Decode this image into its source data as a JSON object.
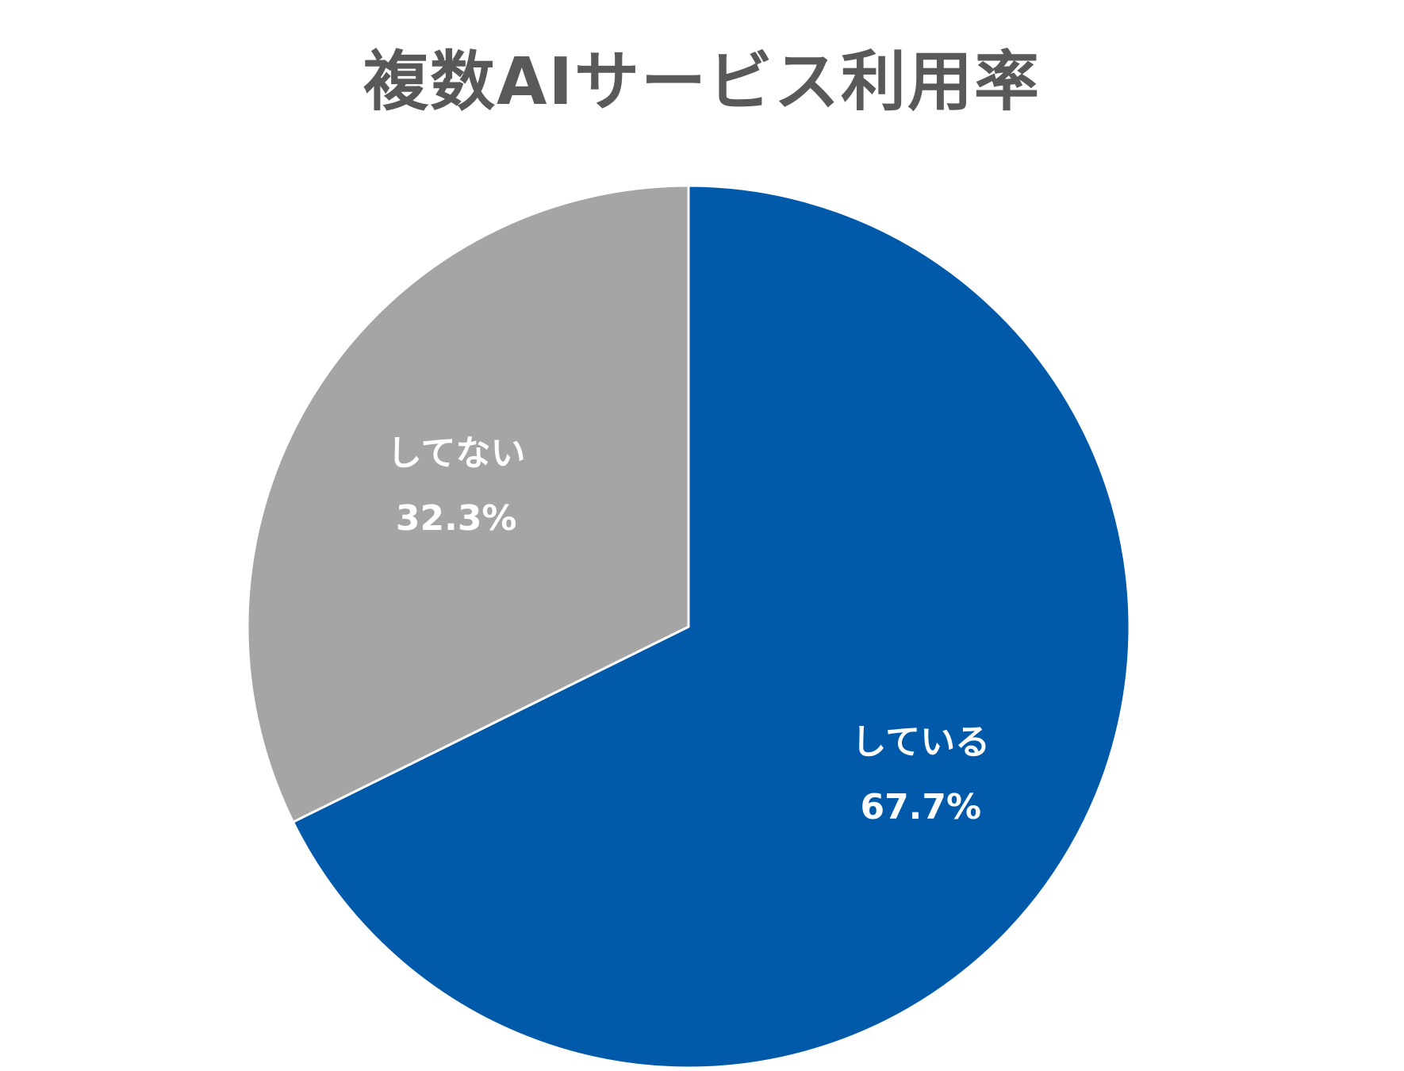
{
  "chart_data": {
    "type": "pie",
    "title": "複数AIサービス利用率",
    "categories": [
      "している",
      "してない"
    ],
    "values": [
      67.7,
      32.3
    ],
    "value_labels": [
      "67.7%",
      "32.3%"
    ],
    "colors": [
      "#0059A9",
      "#A5A5A5"
    ],
    "start_angle_deg": 0,
    "direction": "clockwise",
    "slice_border_color": "#FFFFFF",
    "legend": "none",
    "data_labels": "category-and-percent"
  }
}
